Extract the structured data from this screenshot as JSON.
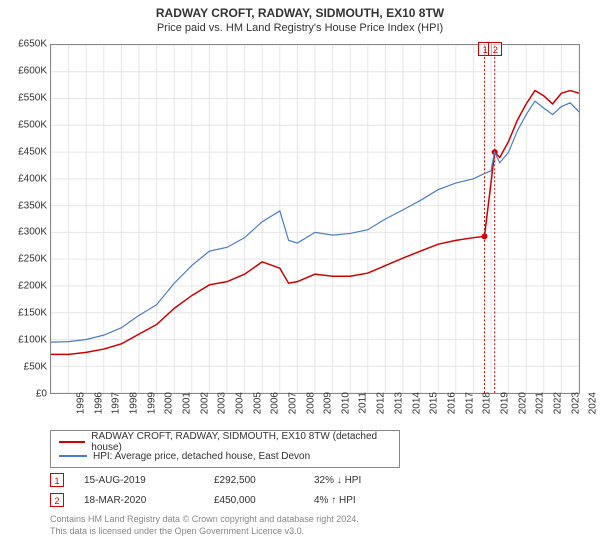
{
  "title": "RADWAY CROFT, RADWAY, SIDMOUTH, EX10 8TW",
  "subtitle": "Price paid vs. HM Land Registry's House Price Index (HPI)",
  "chart": {
    "type": "line",
    "background_color": "#ffffff",
    "border_color": "#888888",
    "grid_color": "#e6e6e6",
    "title_fontsize": 12,
    "subtitle_fontsize": 11,
    "tick_fontsize": 10,
    "xlim": [
      1995,
      2025
    ],
    "ylim": [
      0,
      650
    ],
    "ytick_step": 50,
    "ytick_prefix": "£",
    "ytick_suffix": "K",
    "xticks": [
      1995,
      1996,
      1997,
      1998,
      1999,
      2000,
      2001,
      2002,
      2003,
      2004,
      2005,
      2006,
      2007,
      2008,
      2009,
      2010,
      2011,
      2012,
      2013,
      2014,
      2015,
      2016,
      2017,
      2018,
      2019,
      2020,
      2021,
      2022,
      2023,
      2024,
      2025
    ],
    "series": [
      {
        "name": "RADWAY CROFT, RADWAY, SIDMOUTH, EX10 8TW (detached house)",
        "color": "#d10000",
        "line_width": 1.5,
        "data": [
          [
            1995,
            72
          ],
          [
            1996,
            72
          ],
          [
            1997,
            76
          ],
          [
            1998,
            82
          ],
          [
            1999,
            92
          ],
          [
            2000,
            110
          ],
          [
            2001,
            128
          ],
          [
            2002,
            158
          ],
          [
            2003,
            182
          ],
          [
            2004,
            202
          ],
          [
            2005,
            208
          ],
          [
            2006,
            222
          ],
          [
            2007,
            245
          ],
          [
            2008,
            233
          ],
          [
            2008.5,
            205
          ],
          [
            2009,
            208
          ],
          [
            2010,
            222
          ],
          [
            2011,
            218
          ],
          [
            2012,
            218
          ],
          [
            2013,
            224
          ],
          [
            2014,
            238
          ],
          [
            2015,
            252
          ],
          [
            2016,
            265
          ],
          [
            2017,
            278
          ],
          [
            2018,
            285
          ],
          [
            2019,
            290
          ],
          [
            2019.63,
            292.5
          ],
          [
            2020.21,
            450
          ],
          [
            2020.5,
            440
          ],
          [
            2021,
            470
          ],
          [
            2021.5,
            510
          ],
          [
            2022,
            540
          ],
          [
            2022.5,
            565
          ],
          [
            2023,
            555
          ],
          [
            2023.5,
            540
          ],
          [
            2024,
            560
          ],
          [
            2024.5,
            565
          ],
          [
            2025,
            560
          ]
        ]
      },
      {
        "name": "HPI: Average price, detached house, East Devon",
        "color": "#4a7dc9",
        "line_width": 1.2,
        "data": [
          [
            1995,
            95
          ],
          [
            1996,
            96
          ],
          [
            1997,
            100
          ],
          [
            1998,
            108
          ],
          [
            1999,
            122
          ],
          [
            2000,
            145
          ],
          [
            2001,
            165
          ],
          [
            2002,
            205
          ],
          [
            2003,
            238
          ],
          [
            2004,
            265
          ],
          [
            2005,
            272
          ],
          [
            2006,
            290
          ],
          [
            2007,
            320
          ],
          [
            2008,
            340
          ],
          [
            2008.5,
            285
          ],
          [
            2009,
            280
          ],
          [
            2010,
            300
          ],
          [
            2011,
            295
          ],
          [
            2012,
            298
          ],
          [
            2013,
            305
          ],
          [
            2014,
            325
          ],
          [
            2015,
            342
          ],
          [
            2016,
            360
          ],
          [
            2017,
            380
          ],
          [
            2018,
            392
          ],
          [
            2019,
            400
          ],
          [
            2019.5,
            408
          ],
          [
            2020,
            415
          ],
          [
            2020.2,
            450
          ],
          [
            2020.5,
            430
          ],
          [
            2021,
            450
          ],
          [
            2021.5,
            490
          ],
          [
            2022,
            520
          ],
          [
            2022.5,
            545
          ],
          [
            2023,
            532
          ],
          [
            2023.5,
            520
          ],
          [
            2024,
            535
          ],
          [
            2024.5,
            542
          ],
          [
            2025,
            525
          ]
        ]
      }
    ],
    "markers": [
      {
        "label": "1",
        "x": 2019.63,
        "y": 292.5
      },
      {
        "label": "2",
        "x": 2020.21,
        "y": 450
      }
    ]
  },
  "legend": {
    "border_color": "#888888",
    "fontsize": 10
  },
  "events": [
    {
      "num": "1",
      "date": "15-AUG-2019",
      "price": "£292,500",
      "pct": "32% ↓ HPI"
    },
    {
      "num": "2",
      "date": "18-MAR-2020",
      "price": "£450,000",
      "pct": "4% ↑ HPI"
    }
  ],
  "footer": {
    "line1": "Contains HM Land Registry data © Crown copyright and database right 2024.",
    "line2": "This data is licensed under the Open Government Licence v3.0."
  }
}
